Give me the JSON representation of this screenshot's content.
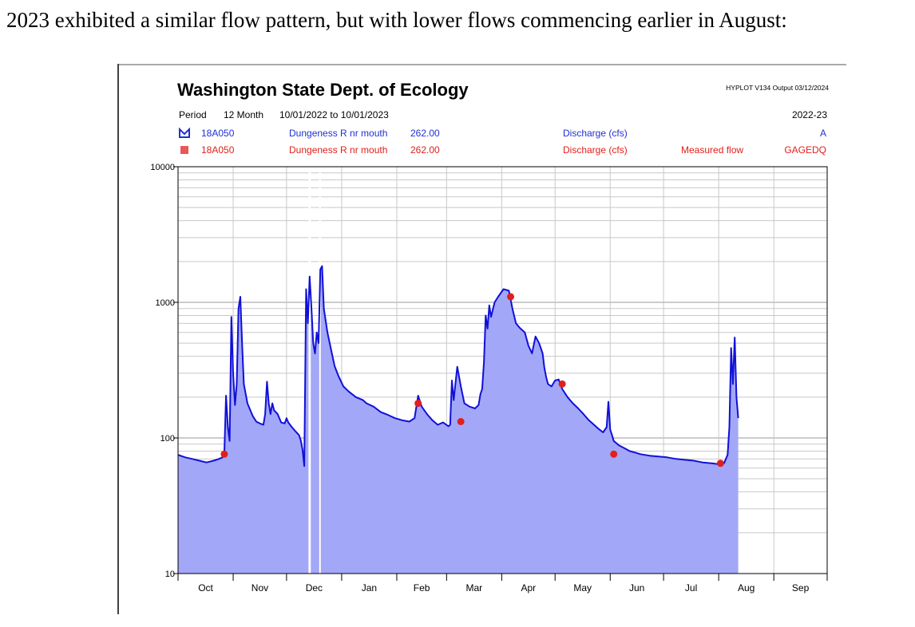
{
  "caption": "2023 exhibited a similar flow pattern, but with lower flows commencing earlier in August:",
  "chart_data": {
    "type": "area",
    "title": "Washington State Dept. of Ecology",
    "output_info": "HYPLOT V134 Output 03/12/2024",
    "period_label": "Period",
    "period_length": "12 Month",
    "period_range": "10/01/2022 to 10/01/2023",
    "water_year": "2022-23",
    "header_rows": [
      {
        "station": "18A050",
        "river": "Dungeness R nr mouth",
        "value": "262.00",
        "parameter": "Discharge (cfs)",
        "description": "",
        "code": "A",
        "color": "#1f2fd6"
      },
      {
        "station": "18A050",
        "river": "Dungeness R nr mouth",
        "value": "262.00",
        "parameter": "Discharge (cfs)",
        "description": "Measured flow",
        "code": "GAGEDQ",
        "color": "#e0201b"
      }
    ],
    "y_scale": "log",
    "ylim": [
      10,
      10000
    ],
    "y_ticks": [
      "10",
      "100",
      "1000",
      "10000"
    ],
    "x_ticks": [
      "Oct",
      "Nov",
      "Dec",
      "Jan",
      "Feb",
      "Mar",
      "Apr",
      "May",
      "Jun",
      "Jul",
      "Aug",
      "Sep"
    ],
    "x_domain_days": [
      0,
      365
    ],
    "grid": true,
    "colors": {
      "line": "#1010d8",
      "fill": "#a3a7f7",
      "measured": "#e0201b",
      "gap": "#ffffff"
    },
    "gaps": [
      [
        73,
        75
      ],
      [
        79,
        80
      ]
    ],
    "series": [
      {
        "kind": "discharge",
        "points": [
          [
            0,
            75
          ],
          [
            4,
            72
          ],
          [
            8,
            70
          ],
          [
            12,
            68
          ],
          [
            16,
            66
          ],
          [
            20,
            68
          ],
          [
            23,
            70
          ],
          [
            25,
            72
          ],
          [
            26,
            75
          ],
          [
            27,
            205
          ],
          [
            28,
            120
          ],
          [
            29,
            95
          ],
          [
            30,
            780
          ],
          [
            31,
            300
          ],
          [
            32,
            175
          ],
          [
            33,
            250
          ],
          [
            34,
            900
          ],
          [
            35,
            1100
          ],
          [
            36,
            500
          ],
          [
            37,
            250
          ],
          [
            39,
            180
          ],
          [
            42,
            145
          ],
          [
            44,
            132
          ],
          [
            46,
            128
          ],
          [
            48,
            125
          ],
          [
            49,
            150
          ],
          [
            50,
            260
          ],
          [
            51,
            180
          ],
          [
            52,
            150
          ],
          [
            53,
            180
          ],
          [
            54,
            160
          ],
          [
            56,
            150
          ],
          [
            58,
            130
          ],
          [
            60,
            128
          ],
          [
            61,
            140
          ],
          [
            62,
            130
          ],
          [
            64,
            120
          ],
          [
            66,
            112
          ],
          [
            68,
            105
          ],
          [
            69,
            96
          ],
          [
            70,
            82
          ],
          [
            71,
            62
          ],
          [
            72,
            1250
          ],
          [
            73,
            700
          ],
          [
            74,
            1550
          ],
          [
            75,
            900
          ],
          [
            76,
            500
          ],
          [
            77,
            420
          ],
          [
            78,
            600
          ],
          [
            79,
            500
          ],
          [
            80,
            1750
          ],
          [
            81,
            1850
          ],
          [
            82,
            900
          ],
          [
            84,
            600
          ],
          [
            86,
            450
          ],
          [
            88,
            340
          ],
          [
            90,
            290
          ],
          [
            93,
            240
          ],
          [
            96,
            220
          ],
          [
            100,
            200
          ],
          [
            104,
            190
          ],
          [
            106,
            180
          ],
          [
            110,
            170
          ],
          [
            114,
            155
          ],
          [
            118,
            148
          ],
          [
            122,
            140
          ],
          [
            126,
            135
          ],
          [
            130,
            132
          ],
          [
            133,
            140
          ],
          [
            135,
            205
          ],
          [
            137,
            170
          ],
          [
            140,
            150
          ],
          [
            143,
            135
          ],
          [
            146,
            125
          ],
          [
            149,
            130
          ],
          [
            152,
            122
          ],
          [
            153,
            125
          ],
          [
            154,
            265
          ],
          [
            155,
            190
          ],
          [
            157,
            335
          ],
          [
            159,
            240
          ],
          [
            161,
            180
          ],
          [
            164,
            170
          ],
          [
            167,
            165
          ],
          [
            169,
            175
          ],
          [
            170,
            210
          ],
          [
            171,
            230
          ],
          [
            172,
            360
          ],
          [
            173,
            800
          ],
          [
            174,
            640
          ],
          [
            175,
            950
          ],
          [
            176,
            780
          ],
          [
            178,
            1000
          ],
          [
            180,
            1100
          ],
          [
            183,
            1250
          ],
          [
            186,
            1220
          ],
          [
            188,
            900
          ],
          [
            190,
            700
          ],
          [
            192,
            650
          ],
          [
            195,
            600
          ],
          [
            197,
            480
          ],
          [
            199,
            420
          ],
          [
            201,
            560
          ],
          [
            203,
            500
          ],
          [
            205,
            420
          ],
          [
            206,
            330
          ],
          [
            207,
            280
          ],
          [
            208,
            250
          ],
          [
            210,
            240
          ],
          [
            212,
            265
          ],
          [
            214,
            270
          ],
          [
            216,
            230
          ],
          [
            219,
            200
          ],
          [
            222,
            180
          ],
          [
            225,
            165
          ],
          [
            228,
            150
          ],
          [
            231,
            135
          ],
          [
            233,
            128
          ],
          [
            236,
            118
          ],
          [
            239,
            110
          ],
          [
            241,
            120
          ],
          [
            242,
            185
          ],
          [
            243,
            115
          ],
          [
            244,
            105
          ],
          [
            245,
            95
          ],
          [
            248,
            88
          ],
          [
            251,
            84
          ],
          [
            254,
            80
          ],
          [
            257,
            78
          ],
          [
            260,
            76
          ],
          [
            265,
            74
          ],
          [
            270,
            73
          ],
          [
            275,
            72
          ],
          [
            280,
            70
          ],
          [
            285,
            69
          ],
          [
            290,
            68
          ],
          [
            295,
            66
          ],
          [
            300,
            65
          ],
          [
            304,
            64
          ],
          [
            307,
            65
          ],
          [
            309,
            75
          ],
          [
            310,
            120
          ],
          [
            311,
            460
          ],
          [
            312,
            250
          ],
          [
            313,
            550
          ],
          [
            314,
            200
          ],
          [
            315,
            140
          ]
        ]
      },
      {
        "kind": "measured_flow",
        "points": [
          [
            26,
            76
          ],
          [
            135,
            180
          ],
          [
            159,
            132
          ],
          [
            187,
            1100
          ],
          [
            216,
            250
          ],
          [
            245,
            76
          ],
          [
            305,
            65
          ]
        ]
      }
    ]
  }
}
